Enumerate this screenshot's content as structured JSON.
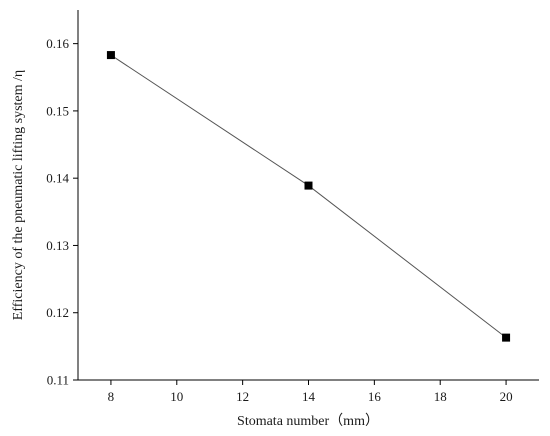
{
  "chart_data": {
    "type": "line",
    "title": "",
    "xlabel": "Stomata number（mm）",
    "ylabel": "Efficiency of the pneumatic lifting system /η",
    "x": [
      8,
      14,
      20
    ],
    "series": [
      {
        "values": [
          0.1583,
          0.1389,
          0.1163
        ],
        "marker": "square"
      }
    ],
    "xlim": [
      7,
      21
    ],
    "ylim": [
      0.11,
      0.165
    ],
    "xticks": [
      8,
      10,
      12,
      14,
      16,
      18,
      20
    ],
    "yticks": [
      0.11,
      0.12,
      0.13,
      0.14,
      0.15,
      0.16
    ],
    "xtick_labels": [
      "8",
      "10",
      "12",
      "14",
      "16",
      "18",
      "20"
    ],
    "ytick_labels": [
      "0.11",
      "0.12",
      "0.13",
      "0.14",
      "0.15",
      "0.16"
    ],
    "grid": false,
    "colors": {
      "line": "#555555",
      "marker": "#000000",
      "axis": "#000000"
    }
  }
}
